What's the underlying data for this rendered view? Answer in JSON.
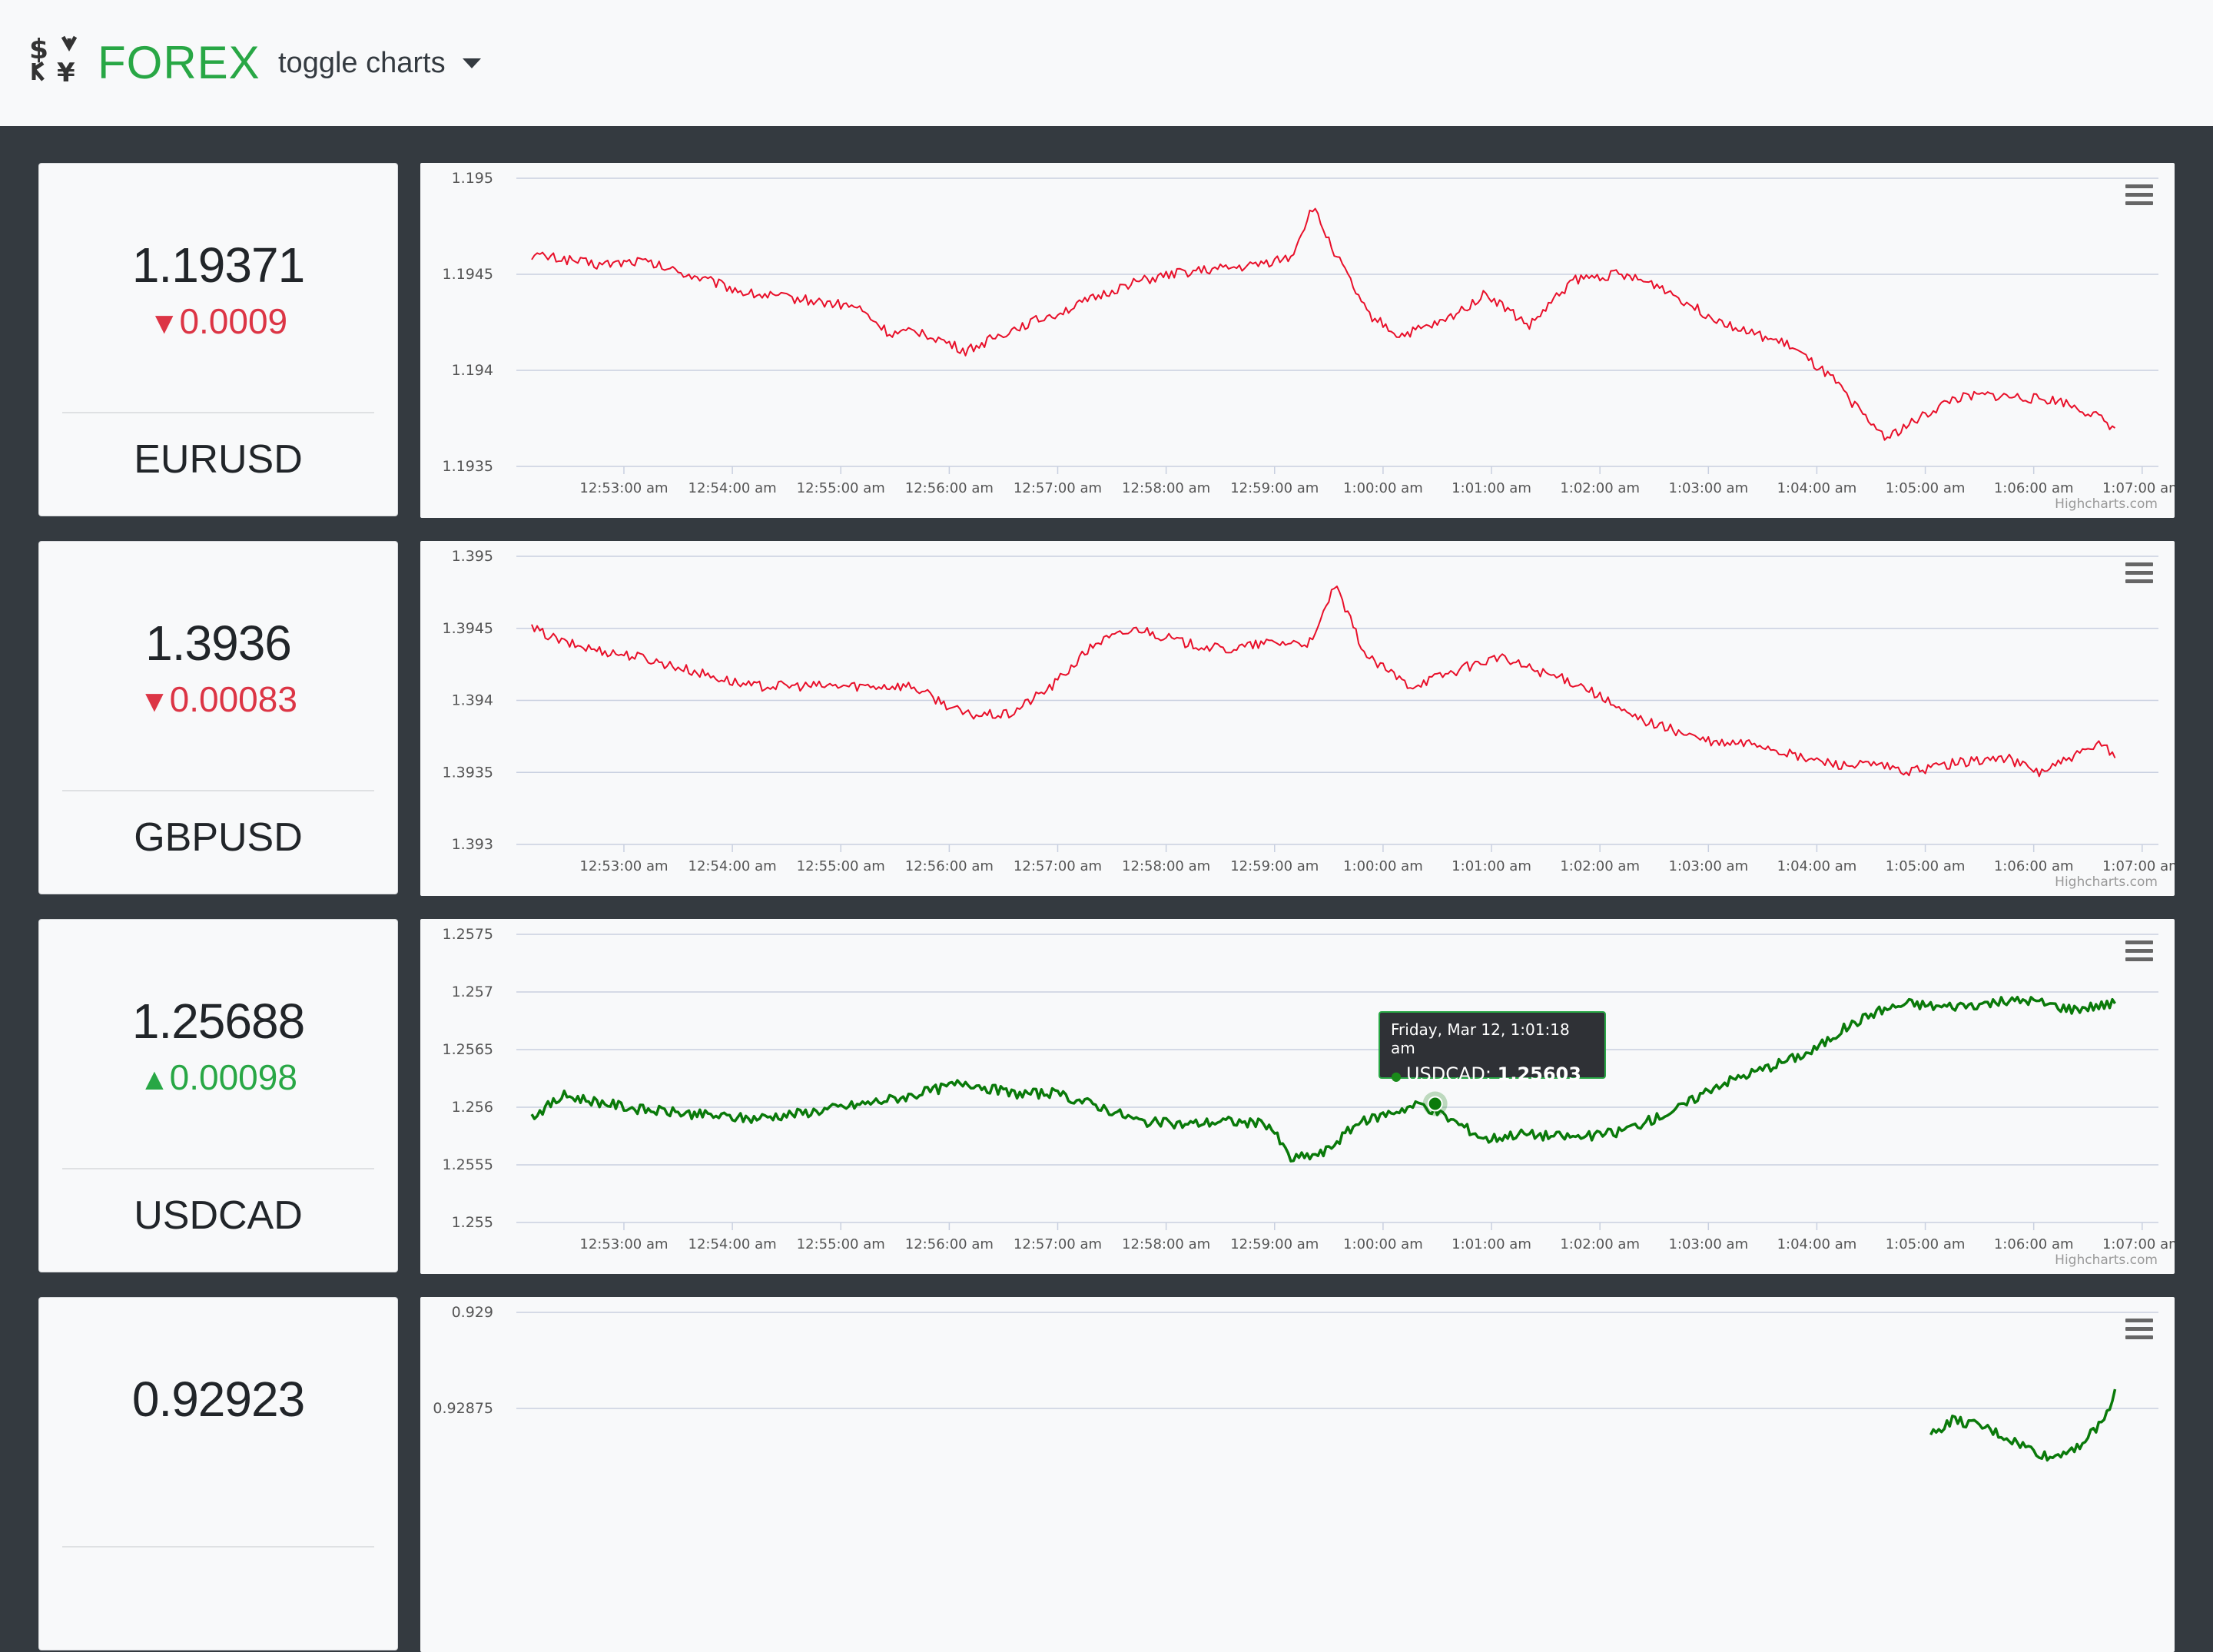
{
  "header": {
    "brand": "FOREX",
    "toggle_label": "toggle charts",
    "logo_icon": "currency-exchange-icon",
    "brand_color": "#28a745"
  },
  "colors": {
    "down": "#dc3545",
    "up": "#28a745",
    "down_line": "#e8102a",
    "up_line": "#0a7a0a"
  },
  "x_ticks": [
    "12:53:00 am",
    "12:54:00 am",
    "12:55:00 am",
    "12:56:00 am",
    "12:57:00 am",
    "12:58:00 am",
    "12:59:00 am",
    "1:00:00 am",
    "1:01:00 am",
    "1:02:00 am",
    "1:03:00 am",
    "1:04:00 am",
    "1:05:00 am",
    "1:06:00 am",
    "1:07:00 am"
  ],
  "credits": "Highcharts.com",
  "pairs": [
    {
      "symbol": "EURUSD",
      "price": "1.19371",
      "change": "0.0009",
      "direction": "down",
      "arrow": "▼",
      "chart_data": {
        "type": "line",
        "series": [
          {
            "name": "EURUSD",
            "color": "#e8102a",
            "x": [
              0,
              0.3,
              0.6,
              1.0,
              1.5,
              2.0,
              2.5,
              3.0,
              3.3,
              3.6,
              4.0,
              4.5,
              5.0,
              5.5,
              6.0,
              6.6,
              7.0,
              7.2,
              7.4,
              7.7,
              8.0,
              8.4,
              8.8,
              9.2,
              9.6,
              10.0,
              10.4,
              10.8,
              11.2,
              11.6,
              12.0,
              12.3,
              12.5,
              12.8,
              13.1,
              13.4,
              13.7,
              14.1,
              14.4,
              14.6
            ],
            "values": [
              1.1946,
              1.19458,
              1.19455,
              1.19457,
              1.19449,
              1.1944,
              1.19437,
              1.19433,
              1.19419,
              1.1942,
              1.1941,
              1.19423,
              1.19433,
              1.19445,
              1.19451,
              1.19454,
              1.19459,
              1.19485,
              1.19462,
              1.1943,
              1.19418,
              1.19425,
              1.1944,
              1.19423,
              1.19447,
              1.1945,
              1.19444,
              1.1943,
              1.1942,
              1.19413,
              1.19395,
              1.19375,
              1.19365,
              1.19375,
              1.19385,
              1.19387,
              1.19386,
              1.19384,
              1.19377,
              1.1937
            ]
          }
        ],
        "ylim": [
          1.1935,
          1.195
        ],
        "y_ticks": [
          "1.195",
          "1.1945",
          "1.194",
          "1.1935"
        ]
      }
    },
    {
      "symbol": "GBPUSD",
      "price": "1.3936",
      "change": "0.00083",
      "direction": "down",
      "arrow": "▼",
      "chart_data": {
        "type": "line",
        "series": [
          {
            "name": "GBPUSD",
            "color": "#e8102a",
            "x": [
              0,
              0.3,
              0.6,
              1.0,
              1.5,
              2.0,
              2.5,
              3.0,
              3.5,
              4.0,
              4.4,
              4.8,
              5.2,
              5.6,
              6.0,
              6.4,
              6.8,
              7.2,
              7.4,
              7.7,
              8.1,
              8.5,
              8.9,
              9.3,
              9.7,
              10.1,
              10.5,
              10.9,
              11.3,
              11.7,
              12.1,
              12.4,
              12.7,
              13.0,
              13.3,
              13.6,
              13.9,
              14.2,
              14.5,
              14.6
            ],
            "values": [
              1.3945,
              1.3944,
              1.39435,
              1.3943,
              1.3942,
              1.3941,
              1.3941,
              1.3941,
              1.3941,
              1.3939,
              1.3939,
              1.3941,
              1.3944,
              1.3945,
              1.3944,
              1.39435,
              1.3944,
              1.3944,
              1.3948,
              1.3943,
              1.3941,
              1.3942,
              1.3943,
              1.3942,
              1.3941,
              1.3939,
              1.3938,
              1.3937,
              1.3937,
              1.3936,
              1.39355,
              1.39355,
              1.3935,
              1.39355,
              1.39358,
              1.3936,
              1.3935,
              1.3936,
              1.3937,
              1.3936
            ]
          }
        ],
        "ylim": [
          1.393,
          1.395
        ],
        "y_ticks": [
          "1.395",
          "1.3945",
          "1.394",
          "1.3935",
          "1.393"
        ]
      }
    },
    {
      "symbol": "USDCAD",
      "price": "1.25688",
      "change": "0.00098",
      "direction": "up",
      "arrow": "▲",
      "chart_data": {
        "type": "line",
        "series": [
          {
            "name": "USDCAD",
            "color": "#0a7a0a",
            "x": [
              0,
              0.3,
              0.6,
              1.0,
              1.5,
              2.0,
              2.5,
              3.0,
              3.5,
              4.0,
              4.4,
              4.8,
              5.2,
              5.6,
              6.0,
              6.4,
              6.8,
              7.0,
              7.3,
              7.6,
              7.9,
              8.2,
              8.5,
              8.8,
              9.1,
              9.4,
              9.7,
              10.0,
              10.3,
              10.6,
              10.9,
              11.2,
              11.5,
              11.8,
              12.1,
              12.4,
              12.7,
              13.0,
              13.4,
              13.8,
              14.2,
              14.6
            ],
            "values": [
              1.25592,
              1.2561,
              1.25605,
              1.25598,
              1.25594,
              1.2559,
              1.25595,
              1.25602,
              1.2561,
              1.25622,
              1.25612,
              1.25612,
              1.25602,
              1.25588,
              1.25585,
              1.25588,
              1.25585,
              1.25555,
              1.2556,
              1.25585,
              1.25595,
              1.25603,
              1.25588,
              1.25572,
              1.25577,
              1.25575,
              1.25574,
              1.25578,
              1.25588,
              1.256,
              1.25618,
              1.25628,
              1.25638,
              1.25648,
              1.25668,
              1.25683,
              1.2569,
              1.25687,
              1.2569,
              1.25693,
              1.25685,
              1.2569
            ]
          }
        ],
        "ylim": [
          1.255,
          1.2575
        ],
        "y_ticks": [
          "1.2575",
          "1.257",
          "1.2565",
          "1.256",
          "1.2555",
          "1.255"
        ]
      },
      "tooltip": {
        "date": "Friday, Mar 12, 1:01:18 am",
        "series": "USDCAD:",
        "value": "1.25603"
      }
    },
    {
      "symbol": "",
      "price": "0.92923",
      "change": "",
      "direction": "up",
      "arrow": "",
      "chart_data": {
        "type": "line",
        "series": [
          {
            "name": "",
            "color": "#0a7a0a",
            "x": [
              12.9,
              13.1,
              13.4,
              13.7,
              14.0,
              14.3,
              14.5,
              14.6
            ],
            "values": [
              0.92868,
              0.92872,
              0.9287,
              0.92866,
              0.92862,
              0.92866,
              0.92872,
              0.9288
            ]
          }
        ],
        "ylim": [
          0.92825,
          0.929
        ],
        "y_ticks": [
          "0.929",
          "0.92875"
        ]
      }
    }
  ]
}
